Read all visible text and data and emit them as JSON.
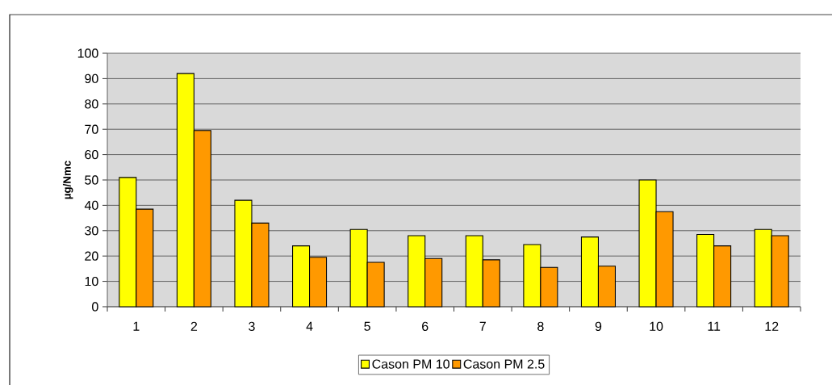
{
  "chart_data": {
    "type": "bar",
    "ylabel": "µg/Nmc",
    "categories": [
      "1",
      "2",
      "3",
      "4",
      "5",
      "6",
      "7",
      "8",
      "9",
      "10",
      "11",
      "12"
    ],
    "series": [
      {
        "name": "Cason PM 10",
        "color": "#ffff00",
        "values": [
          51,
          92,
          42,
          24,
          30.5,
          28,
          28,
          24.5,
          27.5,
          50,
          28.5,
          30.5
        ]
      },
      {
        "name": "Cason PM 2.5",
        "color": "#ff9900",
        "values": [
          38.5,
          69.5,
          33,
          19.5,
          17.5,
          19,
          18.5,
          15.5,
          16,
          37.5,
          24,
          28
        ]
      }
    ],
    "ylim": [
      0,
      100
    ],
    "yticks": [
      0,
      10,
      20,
      30,
      40,
      50,
      60,
      70,
      80,
      90,
      100
    ],
    "grid": "y",
    "legend": "bottom"
  }
}
